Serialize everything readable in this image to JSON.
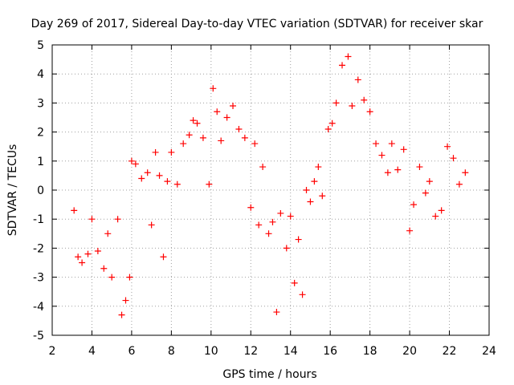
{
  "chart_data": {
    "type": "scatter",
    "title": "Day 269 of 2017, Sidereal Day-to-day VTEC variation (SDTVAR) for receiver skar",
    "xlabel": "GPS time / hours",
    "ylabel": "SDTVAR / TECUs",
    "xlim": [
      2,
      24
    ],
    "ylim": [
      -5,
      5
    ],
    "xticks": [
      "2",
      "4",
      "6",
      "8",
      "10",
      "12",
      "14",
      "16",
      "18",
      "20",
      "22",
      "24"
    ],
    "yticks": [
      "5",
      "4",
      "3",
      "2",
      "1",
      "0",
      "-1",
      "-2",
      "-3",
      "-4",
      "-5"
    ],
    "grid": true,
    "marker": "+",
    "series": [
      {
        "name": "SDTVAR",
        "color": "#ff0000",
        "x": [
          3.1,
          3.3,
          3.5,
          3.8,
          4.0,
          4.3,
          4.6,
          4.8,
          5.0,
          5.3,
          5.5,
          5.7,
          5.9,
          6.0,
          6.2,
          6.5,
          6.8,
          7.0,
          7.2,
          7.4,
          7.6,
          7.8,
          8.0,
          8.3,
          8.6,
          8.9,
          9.1,
          9.3,
          9.6,
          9.9,
          10.1,
          10.3,
          10.5,
          10.8,
          11.1,
          11.4,
          11.7,
          12.0,
          12.2,
          12.4,
          12.6,
          12.9,
          13.1,
          13.3,
          13.5,
          13.8,
          14.0,
          14.2,
          14.4,
          14.6,
          14.8,
          15.0,
          15.2,
          15.4,
          15.6,
          15.9,
          16.1,
          16.3,
          16.6,
          16.9,
          17.1,
          17.4,
          17.7,
          18.0,
          18.3,
          18.6,
          18.9,
          19.1,
          19.4,
          19.7,
          20.0,
          20.2,
          20.5,
          20.8,
          21.0,
          21.3,
          21.6,
          21.9,
          22.2,
          22.5,
          22.8
        ],
        "y": [
          -0.7,
          -2.3,
          -2.5,
          -2.2,
          -1.0,
          -2.1,
          -2.7,
          -1.5,
          -3.0,
          -1.0,
          -4.3,
          -3.8,
          -3.0,
          1.0,
          0.9,
          0.4,
          0.6,
          -1.2,
          1.3,
          0.5,
          -2.3,
          0.3,
          1.3,
          0.2,
          1.6,
          1.9,
          2.4,
          2.3,
          1.8,
          0.2,
          3.5,
          2.7,
          1.7,
          2.5,
          2.9,
          2.1,
          1.8,
          -0.6,
          1.6,
          -1.2,
          0.8,
          -1.5,
          -1.1,
          -4.2,
          -0.8,
          -2.0,
          -0.9,
          -3.2,
          -1.7,
          -3.6,
          0.0,
          -0.4,
          0.3,
          0.8,
          -0.2,
          2.1,
          2.3,
          3.0,
          4.3,
          4.6,
          2.9,
          3.8,
          3.1,
          2.7,
          1.6,
          1.2,
          0.6,
          1.6,
          0.7,
          1.4,
          -1.4,
          -0.5,
          0.8,
          -0.1,
          0.3,
          -0.9,
          -0.7,
          1.5,
          1.1,
          0.2,
          0.6
        ]
      }
    ]
  }
}
